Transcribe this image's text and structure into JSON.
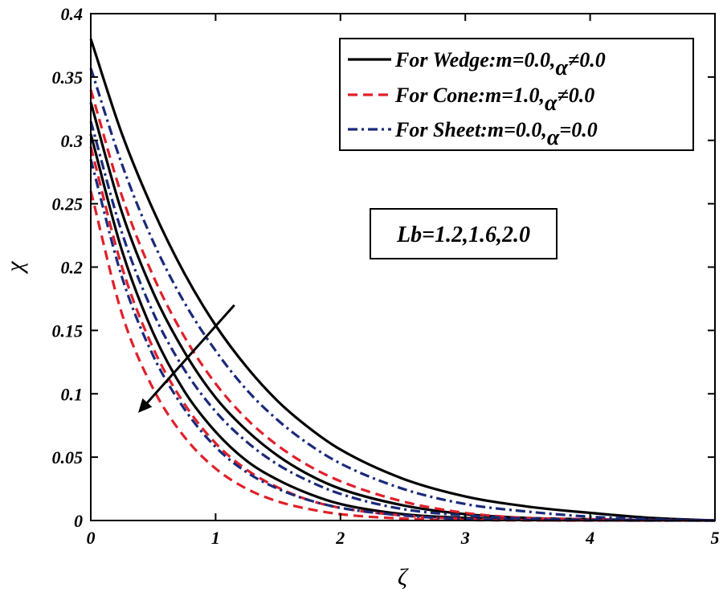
{
  "chart_data": {
    "type": "line",
    "title": "",
    "xlabel": "ζ",
    "ylabel": "χ",
    "xlim": [
      0,
      5
    ],
    "ylim": [
      0,
      0.4
    ],
    "x_ticks": [
      0,
      1,
      2,
      3,
      4,
      5
    ],
    "x_tick_labels": [
      "0",
      "1",
      "2",
      "3",
      "4",
      "5"
    ],
    "y_ticks": [
      0,
      0.05,
      0.1,
      0.15,
      0.2,
      0.25,
      0.3,
      0.35,
      0.4
    ],
    "y_tick_labels": [
      "0",
      "0.05",
      "0.1",
      "0.15",
      "0.2",
      "0.25",
      "0.3",
      "0.35",
      "0.4"
    ],
    "grid": false,
    "legend_position": "top-right",
    "legend": [
      {
        "style": "solid",
        "color": "#000000",
        "prefix": "For Wedge:m=0.0,",
        "greek": "α",
        "suffix": "≠0.0"
      },
      {
        "style": "dashed",
        "color": "#e0202a",
        "prefix": "For Cone:m=1.0,",
        "greek": "α",
        "suffix": "≠0.0"
      },
      {
        "style": "dashdot",
        "color": "#1a2a7a",
        "prefix": "For Sheet:m=0.0,",
        "greek": "α",
        "suffix": "=0.0"
      }
    ],
    "annotation": "Lb=1.2,1.6,2.0",
    "arrow": {
      "from": [
        1.15,
        0.17
      ],
      "to": [
        0.38,
        0.085
      ],
      "meaning": "increasing Lb"
    },
    "x_samples": [
      0,
      0.25,
      0.5,
      0.75,
      1,
      1.25,
      1.5,
      1.75,
      2,
      2.5,
      3,
      3.5,
      4,
      4.5,
      5
    ],
    "series": [
      {
        "name": "Wedge Lb=1.2",
        "group": "wedge",
        "style": "solid",
        "color": "#000000",
        "values": [
          0.38,
          0.305,
          0.245,
          0.195,
          0.154,
          0.121,
          0.094,
          0.073,
          0.056,
          0.033,
          0.019,
          0.011,
          0.006,
          0.002,
          0
        ]
      },
      {
        "name": "Wedge Lb=1.6",
        "group": "wedge",
        "style": "solid",
        "color": "#000000",
        "values": [
          0.33,
          0.243,
          0.18,
          0.133,
          0.097,
          0.071,
          0.051,
          0.036,
          0.025,
          0.012,
          0.005,
          0.002,
          0.001,
          0.0003,
          0
        ]
      },
      {
        "name": "Wedge Lb=2.0",
        "group": "wedge",
        "style": "solid",
        "color": "#000000",
        "values": [
          0.305,
          0.213,
          0.148,
          0.102,
          0.07,
          0.047,
          0.032,
          0.021,
          0.013,
          0.005,
          0.002,
          0.0007,
          0.0002,
          0.0001,
          0
        ]
      },
      {
        "name": "Cone Lb=1.2",
        "group": "cone",
        "style": "dashed",
        "color": "#e0202a",
        "values": [
          0.34,
          0.256,
          0.193,
          0.145,
          0.108,
          0.08,
          0.059,
          0.043,
          0.031,
          0.015,
          0.006,
          0.002,
          0.001,
          0.0003,
          0
        ]
      },
      {
        "name": "Cone Lb=1.6",
        "group": "cone",
        "style": "dashed",
        "color": "#e0202a",
        "values": [
          0.295,
          0.2,
          0.136,
          0.092,
          0.061,
          0.04,
          0.026,
          0.016,
          0.01,
          0.004,
          0.0013,
          0.0004,
          0.0001,
          0,
          0
        ]
      },
      {
        "name": "Cone Lb=2.0",
        "group": "cone",
        "style": "dashed",
        "color": "#e0202a",
        "values": [
          0.26,
          0.163,
          0.104,
          0.066,
          0.041,
          0.025,
          0.015,
          0.009,
          0.005,
          0.0015,
          0.0004,
          0.0001,
          0,
          0,
          0
        ]
      },
      {
        "name": "Sheet Lb=1.2",
        "group": "sheet",
        "style": "dashdot",
        "color": "#1a2a7a",
        "values": [
          0.357,
          0.281,
          0.22,
          0.172,
          0.134,
          0.103,
          0.079,
          0.06,
          0.045,
          0.025,
          0.013,
          0.007,
          0.003,
          0.001,
          0
        ]
      },
      {
        "name": "Sheet Lb=1.6",
        "group": "sheet",
        "style": "dashdot",
        "color": "#1a2a7a",
        "values": [
          0.315,
          0.227,
          0.164,
          0.119,
          0.086,
          0.062,
          0.044,
          0.031,
          0.021,
          0.009,
          0.004,
          0.0015,
          0.0005,
          0.0001,
          0
        ]
      },
      {
        "name": "Sheet Lb=2.0",
        "group": "sheet",
        "style": "dashdot",
        "color": "#1a2a7a",
        "values": [
          0.285,
          0.192,
          0.13,
          0.088,
          0.058,
          0.038,
          0.025,
          0.016,
          0.01,
          0.004,
          0.0012,
          0.0003,
          0.0001,
          0,
          0
        ]
      }
    ]
  }
}
